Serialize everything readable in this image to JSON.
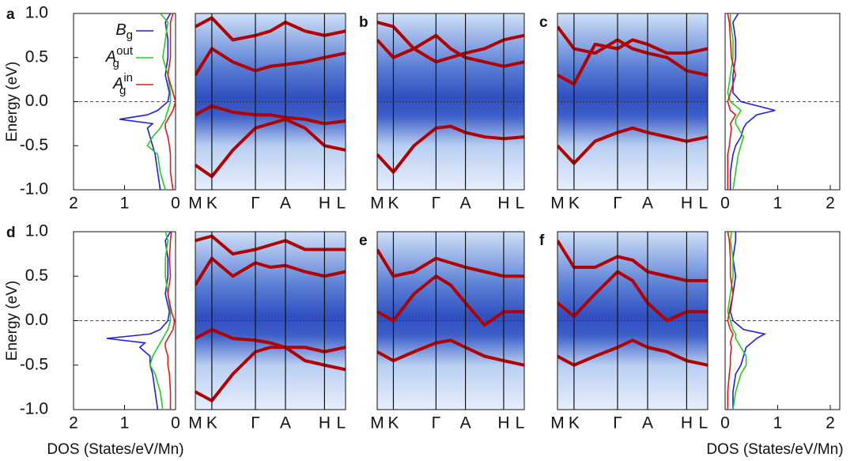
{
  "chart_data": [
    {
      "type": "dos",
      "label": "a",
      "ylabel": "Energy (eV)",
      "side": "left",
      "xlim": [
        2,
        0
      ],
      "xticks": [
        2,
        1,
        0
      ],
      "ylim": [
        -1,
        1
      ],
      "yticks": [
        {
          "value": -1,
          "label": "-1.0"
        },
        {
          "value": -0.5,
          "label": "-0.5"
        },
        {
          "value": 0,
          "label": "0.0"
        },
        {
          "value": 0.5,
          "label": "0.5"
        },
        {
          "value": 1,
          "label": "1.0"
        }
      ],
      "energies": [
        -1,
        -0.8,
        -0.6,
        -0.5,
        -0.4,
        -0.3,
        -0.25,
        -0.2,
        -0.15,
        -0.1,
        0,
        0.1,
        0.3,
        0.5,
        0.7,
        0.9,
        1
      ],
      "series": [
        {
          "name": "B",
          "sub": "g",
          "color": "#1f1fd6",
          "values": [
            0.3,
            0.35,
            0.4,
            0.45,
            0.5,
            0.55,
            0.45,
            1.1,
            0.55,
            0.35,
            0.15,
            0.12,
            0.2,
            0.15,
            0.15,
            0.2,
            0.1
          ]
        },
        {
          "name": "A",
          "sub": "g",
          "sup": "out",
          "color": "#22cc22",
          "values": [
            0.2,
            0.3,
            0.35,
            0.55,
            0.45,
            0.3,
            0.25,
            0.2,
            0.18,
            0.15,
            0.1,
            0.1,
            0.15,
            0.25,
            0.2,
            0.15,
            0.3
          ]
        },
        {
          "name": "A",
          "sub": "g",
          "sup": "in",
          "color": "#e01a1a",
          "values": [
            0.05,
            0.1,
            0.1,
            0.12,
            0.15,
            0.2,
            0.2,
            0.15,
            0.1,
            0.05,
            0,
            0.05,
            0.15,
            0.1,
            0.1,
            0.1,
            0.05
          ]
        }
      ]
    },
    {
      "type": "band",
      "xlim": [
        0,
        1
      ],
      "ylim": [
        -1,
        1
      ],
      "xticks": [
        {
          "value": 0,
          "label": "M"
        },
        {
          "value": 0.11,
          "label": "K"
        },
        {
          "value": 0.4,
          "label": "Γ"
        },
        {
          "value": 0.6,
          "label": "A"
        },
        {
          "value": 0.86,
          "label": "H"
        },
        {
          "value": 0.97,
          "label": "L"
        }
      ],
      "k": [
        0,
        0.11,
        0.25,
        0.4,
        0.5,
        0.6,
        0.73,
        0.86,
        1
      ],
      "bands": [
        [
          -0.72,
          -0.85,
          -0.55,
          -0.3,
          -0.25,
          -0.2,
          -0.3,
          -0.5,
          -0.55
        ],
        [
          0.3,
          0.6,
          0.45,
          0.35,
          0.4,
          0.42,
          0.45,
          0.5,
          0.55
        ],
        [
          -0.15,
          -0.05,
          -0.12,
          -0.15,
          -0.15,
          -0.18,
          -0.2,
          -0.25,
          -0.22
        ],
        [
          0.85,
          0.95,
          0.7,
          0.75,
          0.8,
          0.9,
          0.8,
          0.75,
          0.8
        ]
      ]
    },
    {
      "type": "band",
      "label": "b",
      "xlim": [
        0,
        1
      ],
      "ylim": [
        -1,
        1
      ],
      "xticks": [
        {
          "value": 0,
          "label": "M"
        },
        {
          "value": 0.11,
          "label": "K"
        },
        {
          "value": 0.4,
          "label": "Γ"
        },
        {
          "value": 0.6,
          "label": "A"
        },
        {
          "value": 0.86,
          "label": "H"
        },
        {
          "value": 0.97,
          "label": "L"
        }
      ],
      "k": [
        0,
        0.11,
        0.25,
        0.4,
        0.5,
        0.6,
        0.73,
        0.86,
        1
      ],
      "bands": [
        [
          -0.6,
          -0.8,
          -0.5,
          -0.3,
          -0.28,
          -0.35,
          -0.4,
          -0.42,
          -0.4
        ],
        [
          0.7,
          0.5,
          0.6,
          0.75,
          0.6,
          0.5,
          0.45,
          0.4,
          0.45
        ],
        [
          0.9,
          0.85,
          0.6,
          0.45,
          0.5,
          0.55,
          0.6,
          0.7,
          0.75
        ]
      ]
    },
    {
      "type": "band",
      "label": "c",
      "xlim": [
        0,
        1
      ],
      "ylim": [
        -1,
        1
      ],
      "xticks": [
        {
          "value": 0,
          "label": "M"
        },
        {
          "value": 0.11,
          "label": "K"
        },
        {
          "value": 0.4,
          "label": "Γ"
        },
        {
          "value": 0.6,
          "label": "A"
        },
        {
          "value": 0.86,
          "label": "H"
        },
        {
          "value": 0.97,
          "label": "L"
        }
      ],
      "k": [
        0,
        0.11,
        0.25,
        0.4,
        0.5,
        0.6,
        0.73,
        0.86,
        1
      ],
      "bands": [
        [
          -0.5,
          -0.7,
          -0.45,
          -0.35,
          -0.3,
          -0.35,
          -0.4,
          -0.45,
          -0.4
        ],
        [
          0.85,
          0.6,
          0.55,
          0.7,
          0.6,
          0.55,
          0.5,
          0.35,
          0.3
        ],
        [
          0.3,
          0.2,
          0.65,
          0.6,
          0.7,
          0.65,
          0.55,
          0.55,
          0.6
        ]
      ]
    },
    {
      "type": "dos",
      "side": "right",
      "xlim": [
        0,
        2.18
      ],
      "xticks": [
        0,
        1,
        2
      ],
      "ylim": [
        -1,
        1
      ],
      "energies": [
        -1,
        -0.8,
        -0.6,
        -0.5,
        -0.4,
        -0.3,
        -0.25,
        -0.2,
        -0.15,
        -0.1,
        0,
        0.1,
        0.3,
        0.5,
        0.7,
        0.9,
        1
      ],
      "series": [
        {
          "color": "#1f1fd6",
          "values": [
            0.1,
            0.1,
            0.15,
            0.2,
            0.3,
            0.35,
            0.4,
            0.5,
            0.6,
            0.95,
            0.3,
            0.15,
            0.15,
            0.2,
            0.2,
            0.15,
            0.25
          ]
        },
        {
          "color": "#22cc22",
          "values": [
            0.15,
            0.2,
            0.25,
            0.3,
            0.35,
            0.25,
            0.2,
            0.2,
            0.25,
            0.3,
            0.1,
            0.05,
            0.1,
            0.15,
            0.15,
            0.1,
            0.1
          ]
        },
        {
          "color": "#e01a1a",
          "values": [
            0.05,
            0.05,
            0.05,
            0.08,
            0.1,
            0.12,
            0.1,
            0.15,
            0.2,
            0.1,
            0.05,
            0.1,
            0.2,
            0.12,
            0.1,
            0.08,
            0.05
          ]
        }
      ]
    },
    {
      "type": "dos",
      "label": "d",
      "ylabel": "Energy (eV)",
      "xlabel": "DOS (States/eV/Mn)",
      "side": "left",
      "xlim": [
        2,
        0
      ],
      "xticks": [
        2,
        1,
        0
      ],
      "ylim": [
        -1,
        1
      ],
      "yticks": [
        {
          "value": -1,
          "label": "-1.0"
        },
        {
          "value": -0.5,
          "label": "-0.5"
        },
        {
          "value": 0,
          "label": "0.0"
        },
        {
          "value": 0.5,
          "label": "0.5"
        },
        {
          "value": 1,
          "label": "1.0"
        }
      ],
      "energies": [
        -1,
        -0.8,
        -0.6,
        -0.5,
        -0.4,
        -0.3,
        -0.25,
        -0.2,
        -0.15,
        -0.1,
        0,
        0.1,
        0.3,
        0.5,
        0.7,
        0.9,
        1
      ],
      "series": [
        {
          "color": "#1f1fd6",
          "values": [
            0.35,
            0.4,
            0.45,
            0.5,
            0.5,
            0.7,
            0.6,
            1.35,
            0.5,
            0.3,
            0.15,
            0.12,
            0.2,
            0.15,
            0.15,
            0.2,
            0.1
          ]
        },
        {
          "color": "#22cc22",
          "values": [
            0.25,
            0.3,
            0.4,
            0.5,
            0.45,
            0.35,
            0.3,
            0.25,
            0.2,
            0.15,
            0.1,
            0.1,
            0.15,
            0.2,
            0.2,
            0.15,
            0.2
          ]
        },
        {
          "color": "#e01a1a",
          "values": [
            0.1,
            0.1,
            0.12,
            0.15,
            0.15,
            0.2,
            0.2,
            0.15,
            0.1,
            0.05,
            0.02,
            0.08,
            0.15,
            0.1,
            0.12,
            0.1,
            0.08
          ]
        }
      ]
    },
    {
      "type": "band",
      "xlim": [
        0,
        1
      ],
      "ylim": [
        -1,
        1
      ],
      "xticks": [
        {
          "value": 0,
          "label": "M"
        },
        {
          "value": 0.11,
          "label": "K"
        },
        {
          "value": 0.4,
          "label": "Γ"
        },
        {
          "value": 0.6,
          "label": "A"
        },
        {
          "value": 0.86,
          "label": "H"
        },
        {
          "value": 0.97,
          "label": "L"
        }
      ],
      "k": [
        0,
        0.11,
        0.25,
        0.4,
        0.5,
        0.6,
        0.73,
        0.86,
        1
      ],
      "bands": [
        [
          -0.8,
          -0.9,
          -0.6,
          -0.35,
          -0.3,
          -0.3,
          -0.45,
          -0.5,
          -0.55
        ],
        [
          0.4,
          0.7,
          0.5,
          0.65,
          0.6,
          0.62,
          0.55,
          0.5,
          0.55
        ],
        [
          -0.2,
          -0.1,
          -0.2,
          -0.22,
          -0.25,
          -0.3,
          -0.3,
          -0.35,
          -0.3
        ],
        [
          0.9,
          0.95,
          0.75,
          0.8,
          0.85,
          0.9,
          0.8,
          0.8,
          0.8
        ]
      ]
    },
    {
      "type": "band",
      "label": "e",
      "xlim": [
        0,
        1
      ],
      "ylim": [
        -1,
        1
      ],
      "xticks": [
        {
          "value": 0,
          "label": "M"
        },
        {
          "value": 0.11,
          "label": "K"
        },
        {
          "value": 0.4,
          "label": "Γ"
        },
        {
          "value": 0.6,
          "label": "A"
        },
        {
          "value": 0.86,
          "label": "H"
        },
        {
          "value": 0.97,
          "label": "L"
        }
      ],
      "k": [
        0,
        0.11,
        0.25,
        0.4,
        0.5,
        0.6,
        0.73,
        0.86,
        1
      ],
      "bands": [
        [
          -0.35,
          -0.45,
          -0.35,
          -0.25,
          -0.22,
          -0.3,
          -0.4,
          -0.45,
          -0.5
        ],
        [
          0.8,
          0.5,
          0.55,
          0.7,
          0.65,
          0.6,
          0.55,
          0.5,
          0.5
        ],
        [
          0.1,
          0,
          0.3,
          0.5,
          0.4,
          0.2,
          -0.05,
          0.1,
          0.1
        ]
      ]
    },
    {
      "type": "band",
      "label": "f",
      "xlim": [
        0,
        1
      ],
      "ylim": [
        -1,
        1
      ],
      "xticks": [
        {
          "value": 0,
          "label": "M"
        },
        {
          "value": 0.11,
          "label": "K"
        },
        {
          "value": 0.4,
          "label": "Γ"
        },
        {
          "value": 0.6,
          "label": "A"
        },
        {
          "value": 0.86,
          "label": "H"
        },
        {
          "value": 0.97,
          "label": "L"
        }
      ],
      "k": [
        0,
        0.11,
        0.25,
        0.4,
        0.5,
        0.6,
        0.73,
        0.86,
        1
      ],
      "bands": [
        [
          -0.4,
          -0.5,
          -0.4,
          -0.3,
          -0.22,
          -0.3,
          -0.35,
          -0.45,
          -0.5
        ],
        [
          0.9,
          0.6,
          0.6,
          0.72,
          0.68,
          0.55,
          0.5,
          0.45,
          0.45
        ],
        [
          0.2,
          0.05,
          0.3,
          0.55,
          0.45,
          0.2,
          0,
          0.1,
          0.1
        ]
      ]
    },
    {
      "type": "dos",
      "xlabel": "DOS (States/eV/Mn)",
      "side": "right",
      "xlim": [
        0,
        2.18
      ],
      "xticks": [
        0,
        1,
        2
      ],
      "ylim": [
        -1,
        1
      ],
      "energies": [
        -1,
        -0.8,
        -0.6,
        -0.5,
        -0.4,
        -0.3,
        -0.25,
        -0.2,
        -0.15,
        -0.1,
        0,
        0.1,
        0.3,
        0.5,
        0.7,
        0.9,
        1
      ],
      "series": [
        {
          "color": "#1f1fd6",
          "values": [
            0.15,
            0.15,
            0.2,
            0.3,
            0.35,
            0.4,
            0.5,
            0.6,
            0.75,
            0.35,
            0.15,
            0.1,
            0.15,
            0.2,
            0.15,
            0.2,
            0.2
          ]
        },
        {
          "color": "#22cc22",
          "values": [
            0.15,
            0.2,
            0.3,
            0.4,
            0.4,
            0.3,
            0.25,
            0.2,
            0.2,
            0.15,
            0.1,
            0.05,
            0.1,
            0.15,
            0.15,
            0.1,
            0.12
          ]
        },
        {
          "color": "#e01a1a",
          "values": [
            0.05,
            0.05,
            0.08,
            0.1,
            0.1,
            0.12,
            0.1,
            0.12,
            0.15,
            0.1,
            0.05,
            0.08,
            0.15,
            0.1,
            0.1,
            0.08,
            0.05
          ]
        }
      ]
    }
  ]
}
